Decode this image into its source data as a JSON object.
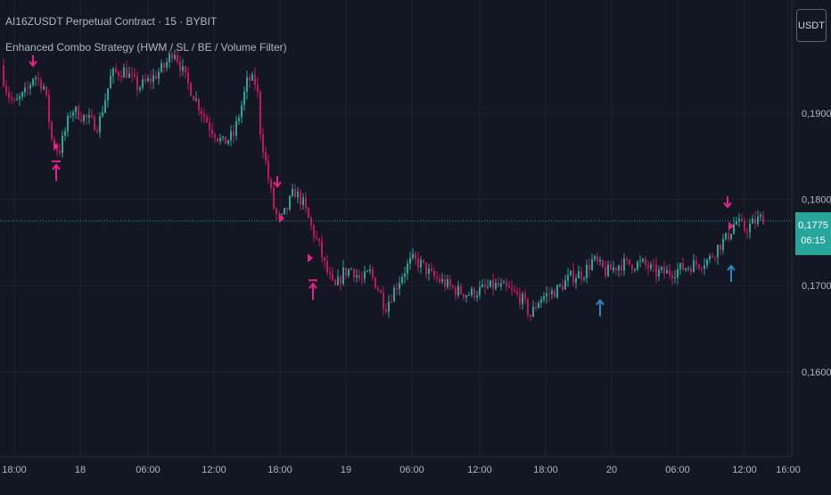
{
  "header": {
    "title": "AI16ZUSDT Perpetual Contract · 15 · BYBIT",
    "indicator": "Enhanced Combo Strategy (HWM / SL / BE / Volume Filter)"
  },
  "currency_badge": "USDT",
  "price_badge": {
    "price": "0,1775",
    "countdown": "06:15"
  },
  "colors": {
    "background": "#131722",
    "up": "#26a69a",
    "down": "#c2185b",
    "signal_pink": "#e91e8c",
    "signal_blue": "#2e86c1",
    "grid": "#1e222d",
    "text": "#b2b5be"
  },
  "chart_data": {
    "type": "candlestick",
    "y_ticks": [
      "0,1900",
      "0,1800",
      "0,1700",
      "0,1600"
    ],
    "x_ticks": [
      "18:00",
      "18",
      "06:00",
      "12:00",
      "18:00",
      "19",
      "06:00",
      "12:00",
      "18:00",
      "20",
      "06:00",
      "12:00",
      "16:00"
    ],
    "ylim": [
      0.154,
      0.2
    ],
    "current_price": 0.1775,
    "path_close": [
      [
        0,
        0.1955
      ],
      [
        8,
        0.1925
      ],
      [
        16,
        0.191
      ],
      [
        30,
        0.1925
      ],
      [
        38,
        0.1945
      ],
      [
        50,
        0.193
      ],
      [
        58,
        0.187
      ],
      [
        66,
        0.1855
      ],
      [
        72,
        0.1875
      ],
      [
        80,
        0.1905
      ],
      [
        95,
        0.1895
      ],
      [
        110,
        0.1885
      ],
      [
        125,
        0.1945
      ],
      [
        140,
        0.195
      ],
      [
        155,
        0.193
      ],
      [
        170,
        0.194
      ],
      [
        185,
        0.1955
      ],
      [
        195,
        0.1975
      ],
      [
        208,
        0.194
      ],
      [
        220,
        0.1915
      ],
      [
        235,
        0.1885
      ],
      [
        250,
        0.1865
      ],
      [
        262,
        0.1875
      ],
      [
        270,
        0.1905
      ],
      [
        278,
        0.194
      ],
      [
        288,
        0.1935
      ],
      [
        292,
        0.188
      ],
      [
        300,
        0.183
      ],
      [
        308,
        0.1785
      ],
      [
        315,
        0.1775
      ],
      [
        322,
        0.179
      ],
      [
        330,
        0.181
      ],
      [
        340,
        0.1795
      ],
      [
        350,
        0.1765
      ],
      [
        358,
        0.1745
      ],
      [
        365,
        0.172
      ],
      [
        375,
        0.1695
      ],
      [
        385,
        0.1715
      ],
      [
        395,
        0.172
      ],
      [
        405,
        0.1705
      ],
      [
        415,
        0.1715
      ],
      [
        425,
        0.1695
      ],
      [
        432,
        0.1675
      ],
      [
        442,
        0.1695
      ],
      [
        452,
        0.1715
      ],
      [
        462,
        0.173
      ],
      [
        472,
        0.1725
      ],
      [
        485,
        0.171
      ],
      [
        495,
        0.1705
      ],
      [
        510,
        0.1695
      ],
      [
        525,
        0.169
      ],
      [
        540,
        0.1695
      ],
      [
        555,
        0.17
      ],
      [
        570,
        0.1695
      ],
      [
        585,
        0.1685
      ],
      [
        595,
        0.1665
      ],
      [
        605,
        0.1685
      ],
      [
        615,
        0.169
      ],
      [
        625,
        0.1695
      ],
      [
        640,
        0.171
      ],
      [
        655,
        0.1715
      ],
      [
        665,
        0.173
      ],
      [
        680,
        0.1715
      ],
      [
        695,
        0.1725
      ],
      [
        710,
        0.1725
      ],
      [
        722,
        0.1725
      ],
      [
        735,
        0.1715
      ],
      [
        750,
        0.1715
      ],
      [
        765,
        0.172
      ],
      [
        780,
        0.1725
      ],
      [
        795,
        0.173
      ],
      [
        805,
        0.1745
      ],
      [
        815,
        0.1755
      ],
      [
        825,
        0.1775
      ],
      [
        835,
        0.1765
      ],
      [
        848,
        0.1775
      ],
      [
        858,
        0.178
      ]
    ],
    "signals": [
      {
        "type": "short-entry",
        "x": 37,
        "y": 0.1955
      },
      {
        "type": "exit",
        "x": 63,
        "y": 0.1862
      },
      {
        "type": "long-entry-marked",
        "x": 63,
        "y": 0.184
      },
      {
        "type": "short-entry",
        "x": 311,
        "y": 0.1815
      },
      {
        "type": "exit",
        "x": 316,
        "y": 0.1778
      },
      {
        "type": "exit",
        "x": 348,
        "y": 0.1732
      },
      {
        "type": "long-entry-marked",
        "x": 351,
        "y": 0.1702
      },
      {
        "type": "long-entry",
        "x": 673,
        "y": 0.1683
      },
      {
        "type": "short-entry",
        "x": 816,
        "y": 0.1791
      },
      {
        "type": "exit",
        "x": 820,
        "y": 0.1769
      },
      {
        "type": "long-entry",
        "x": 820,
        "y": 0.1723
      }
    ]
  }
}
